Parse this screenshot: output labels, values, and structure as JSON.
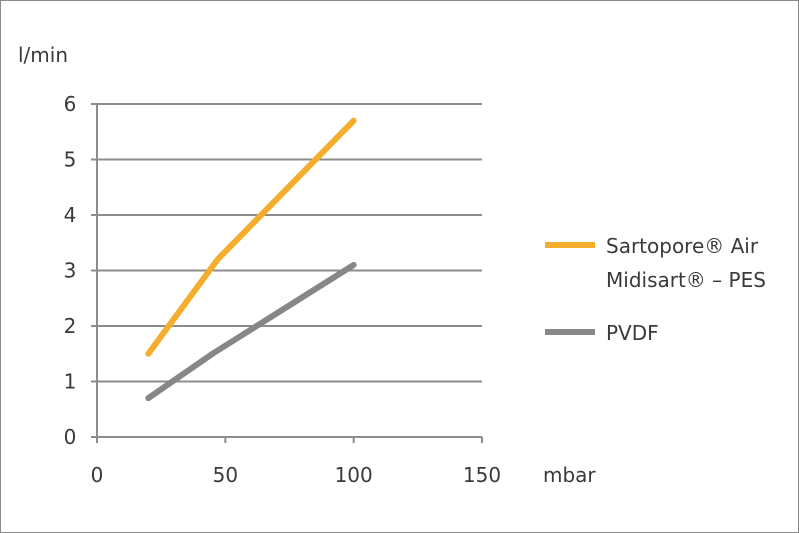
{
  "chart_data": {
    "type": "line",
    "title": "",
    "xlabel": "mbar",
    "ylabel": "l/min",
    "xlim": [
      0,
      150
    ],
    "ylim": [
      0,
      6
    ],
    "xticks": [
      "0",
      "50",
      "100",
      "150"
    ],
    "yticks": [
      "0",
      "1",
      "2",
      "3",
      "4",
      "5",
      "6"
    ],
    "grid": "horizontal",
    "legend_position": "right",
    "series": [
      {
        "name_line1": "Sartopore® Air",
        "name_line2": "Midisart® – PES",
        "color": "#f5ad2d",
        "points": [
          [
            20,
            1.5
          ],
          [
            47,
            3.2
          ],
          [
            100,
            5.7
          ]
        ]
      },
      {
        "name_line1": "PVDF",
        "name_line2": "",
        "color": "#878787",
        "points": [
          [
            20,
            0.7
          ],
          [
            45,
            1.5
          ],
          [
            100,
            3.1
          ]
        ]
      }
    ]
  }
}
